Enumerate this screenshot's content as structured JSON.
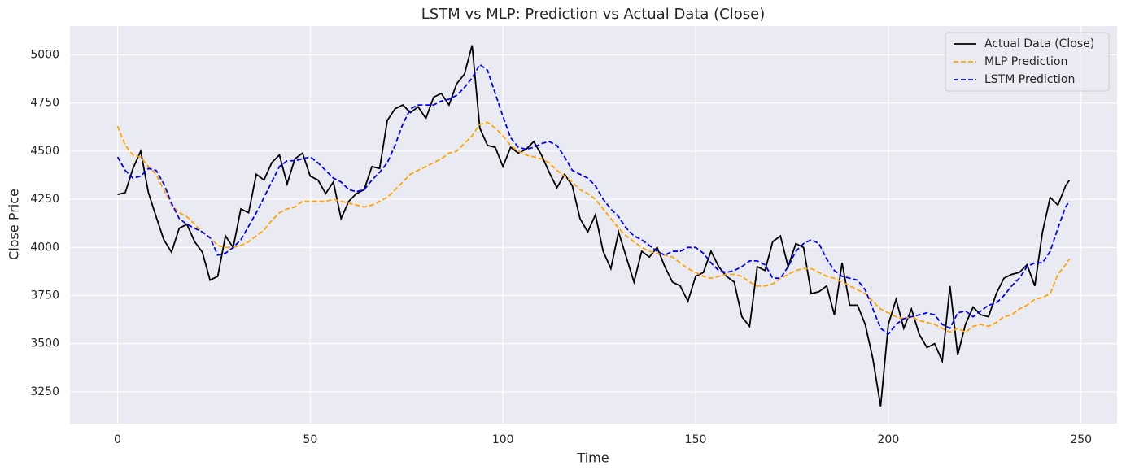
{
  "chart_data": {
    "type": "line",
    "title": "LSTM vs MLP: Prediction vs Actual Data (Close)",
    "xlabel": "Time",
    "ylabel": "Close Price",
    "x": [
      0,
      2,
      4,
      6,
      8,
      10,
      12,
      14,
      16,
      18,
      20,
      22,
      24,
      26,
      28,
      30,
      32,
      34,
      36,
      38,
      40,
      42,
      44,
      46,
      48,
      50,
      52,
      54,
      56,
      58,
      60,
      62,
      64,
      66,
      68,
      70,
      72,
      74,
      76,
      78,
      80,
      82,
      84,
      86,
      88,
      90,
      92,
      94,
      96,
      98,
      100,
      102,
      104,
      106,
      108,
      110,
      112,
      114,
      116,
      118,
      120,
      122,
      124,
      126,
      128,
      130,
      132,
      134,
      136,
      138,
      140,
      142,
      144,
      146,
      148,
      150,
      152,
      154,
      156,
      158,
      160,
      162,
      164,
      166,
      168,
      170,
      172,
      174,
      176,
      178,
      180,
      182,
      184,
      186,
      188,
      190,
      192,
      194,
      196,
      198,
      200,
      202,
      204,
      206,
      208,
      210,
      212,
      214,
      216,
      218,
      220,
      222,
      224,
      226,
      228,
      230,
      232,
      234,
      236,
      238,
      240,
      242,
      244,
      246,
      247
    ],
    "series": [
      {
        "name": "Actual Data (Close)",
        "color": "#000000",
        "dash": "solid",
        "values": [
          4275,
          4285,
          4410,
          4500,
          4285,
          4160,
          4040,
          3975,
          4100,
          4120,
          4030,
          3975,
          3830,
          3850,
          4060,
          4000,
          4200,
          4180,
          4380,
          4350,
          4440,
          4480,
          4330,
          4460,
          4490,
          4370,
          4350,
          4280,
          4340,
          4150,
          4240,
          4280,
          4300,
          4420,
          4410,
          4660,
          4720,
          4740,
          4700,
          4730,
          4670,
          4780,
          4800,
          4740,
          4850,
          4900,
          5050,
          4620,
          4530,
          4520,
          4420,
          4520,
          4490,
          4510,
          4550,
          4480,
          4390,
          4310,
          4380,
          4320,
          4150,
          4080,
          4170,
          3980,
          3890,
          4080,
          3950,
          3820,
          3980,
          3950,
          4000,
          3900,
          3820,
          3800,
          3720,
          3850,
          3870,
          3980,
          3900,
          3850,
          3820,
          3640,
          3590,
          3900,
          3880,
          4030,
          4060,
          3900,
          4020,
          4000,
          3760,
          3770,
          3800,
          3650,
          3920,
          3700,
          3700,
          3600,
          3420,
          3175,
          3600,
          3730,
          3580,
          3680,
          3550,
          3480,
          3500,
          3410,
          3800,
          3440,
          3600,
          3690,
          3650,
          3640,
          3760,
          3840,
          3860,
          3870,
          3910,
          3800,
          4080,
          4260,
          4220,
          4320,
          4350
        ]
      },
      {
        "name": "MLP Prediction",
        "color": "#ffa500",
        "dash": "dashed",
        "values": [
          4630,
          4530,
          4480,
          4470,
          4420,
          4380,
          4300,
          4220,
          4180,
          4160,
          4120,
          4080,
          4050,
          4010,
          4000,
          4000,
          4010,
          4030,
          4060,
          4090,
          4140,
          4180,
          4200,
          4210,
          4240,
          4240,
          4240,
          4240,
          4250,
          4240,
          4230,
          4220,
          4210,
          4220,
          4240,
          4260,
          4300,
          4340,
          4380,
          4400,
          4420,
          4440,
          4460,
          4490,
          4500,
          4540,
          4580,
          4640,
          4650,
          4620,
          4580,
          4530,
          4500,
          4480,
          4470,
          4460,
          4440,
          4400,
          4370,
          4340,
          4300,
          4280,
          4250,
          4200,
          4150,
          4100,
          4060,
          4030,
          4000,
          3980,
          3970,
          3960,
          3950,
          3920,
          3890,
          3870,
          3850,
          3840,
          3850,
          3860,
          3860,
          3850,
          3820,
          3800,
          3800,
          3810,
          3840,
          3860,
          3880,
          3890,
          3890,
          3870,
          3850,
          3840,
          3820,
          3800,
          3780,
          3760,
          3720,
          3680,
          3660,
          3640,
          3630,
          3640,
          3620,
          3610,
          3600,
          3580,
          3560,
          3580,
          3560,
          3590,
          3600,
          3590,
          3610,
          3640,
          3650,
          3680,
          3700,
          3730,
          3740,
          3760,
          3860,
          3910,
          3940
        ]
      },
      {
        "name": "LSTM Prediction",
        "color": "#0000ff",
        "dash": "dashed",
        "values": [
          4470,
          4400,
          4360,
          4370,
          4410,
          4400,
          4330,
          4230,
          4150,
          4120,
          4100,
          4080,
          4050,
          3960,
          3970,
          4000,
          4040,
          4110,
          4180,
          4260,
          4340,
          4420,
          4450,
          4450,
          4460,
          4470,
          4440,
          4400,
          4360,
          4340,
          4300,
          4290,
          4300,
          4350,
          4390,
          4440,
          4530,
          4640,
          4720,
          4740,
          4740,
          4740,
          4760,
          4770,
          4790,
          4830,
          4880,
          4950,
          4920,
          4800,
          4680,
          4570,
          4520,
          4510,
          4520,
          4540,
          4550,
          4530,
          4470,
          4400,
          4380,
          4360,
          4320,
          4250,
          4200,
          4160,
          4100,
          4060,
          4040,
          4010,
          3980,
          3960,
          3980,
          3980,
          4000,
          4000,
          3970,
          3920,
          3880,
          3870,
          3880,
          3900,
          3930,
          3930,
          3910,
          3840,
          3840,
          3900,
          3980,
          4020,
          4040,
          4020,
          3940,
          3880,
          3850,
          3840,
          3830,
          3780,
          3680,
          3580,
          3550,
          3600,
          3630,
          3640,
          3650,
          3660,
          3650,
          3600,
          3580,
          3660,
          3670,
          3640,
          3670,
          3700,
          3710,
          3750,
          3800,
          3840,
          3900,
          3920,
          3920,
          3980,
          4100,
          4210,
          4240
        ]
      }
    ],
    "xlim": [
      -12.35,
      259.35
    ],
    "ylim": [
      3085,
      5150
    ],
    "xticks": [
      0,
      50,
      100,
      150,
      200,
      250
    ],
    "yticks": [
      3250,
      3500,
      3750,
      4000,
      4250,
      4500,
      4750,
      5000
    ],
    "grid": true,
    "legend": "upper right"
  }
}
